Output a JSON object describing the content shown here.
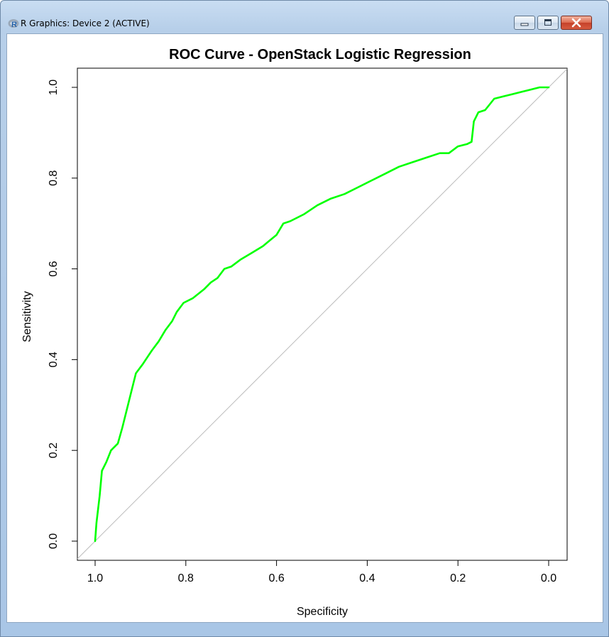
{
  "window": {
    "title": "R Graphics: Device 2 (ACTIVE)",
    "icon": "r-logo-icon",
    "controls": [
      "minimize-icon",
      "maximize-icon",
      "close-icon"
    ]
  },
  "chart_data": {
    "type": "line",
    "title": "ROC Curve - OpenStack Logistic Regression",
    "xlabel": "Specificity",
    "ylabel": "Sensitivity",
    "xlim": [
      1.0,
      0.0
    ],
    "ylim": [
      0.0,
      1.0
    ],
    "x_reversed": true,
    "xticks": [
      "1.0",
      "0.8",
      "0.6",
      "0.4",
      "0.2",
      "0.0"
    ],
    "yticks": [
      "0.0",
      "0.2",
      "0.4",
      "0.6",
      "0.8",
      "1.0"
    ],
    "grid": false,
    "legend": "none",
    "reference_line": {
      "from": [
        1.0,
        0.0
      ],
      "to": [
        0.0,
        1.0
      ],
      "color": "#bdbdbd"
    },
    "series": [
      {
        "color": "#00ff00",
        "specificity": [
          1.0,
          0.997,
          0.99,
          0.985,
          0.975,
          0.965,
          0.95,
          0.94,
          0.93,
          0.92,
          0.91,
          0.895,
          0.885,
          0.875,
          0.86,
          0.845,
          0.83,
          0.82,
          0.805,
          0.785,
          0.76,
          0.745,
          0.73,
          0.715,
          0.7,
          0.68,
          0.655,
          0.63,
          0.6,
          0.585,
          0.57,
          0.54,
          0.51,
          0.48,
          0.45,
          0.42,
          0.39,
          0.36,
          0.33,
          0.3,
          0.27,
          0.24,
          0.22,
          0.2,
          0.18,
          0.17,
          0.165,
          0.155,
          0.14,
          0.12,
          0.1,
          0.08,
          0.06,
          0.04,
          0.02,
          0.0
        ],
        "sensitivity": [
          0.0,
          0.04,
          0.1,
          0.155,
          0.175,
          0.2,
          0.215,
          0.25,
          0.29,
          0.33,
          0.37,
          0.39,
          0.405,
          0.42,
          0.44,
          0.465,
          0.485,
          0.505,
          0.525,
          0.535,
          0.555,
          0.57,
          0.58,
          0.6,
          0.605,
          0.62,
          0.635,
          0.65,
          0.675,
          0.7,
          0.705,
          0.72,
          0.74,
          0.755,
          0.765,
          0.78,
          0.795,
          0.81,
          0.825,
          0.835,
          0.845,
          0.855,
          0.855,
          0.87,
          0.875,
          0.88,
          0.925,
          0.945,
          0.95,
          0.975,
          0.98,
          0.985,
          0.99,
          0.995,
          1.0,
          1.0
        ]
      }
    ]
  }
}
